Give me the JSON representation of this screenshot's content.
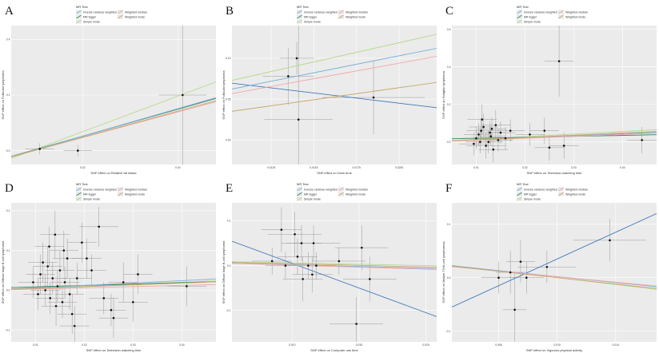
{
  "legend": {
    "title": "MR Test",
    "items": [
      {
        "label": "Inverse variance weighted",
        "color": "#79b0d9"
      },
      {
        "label": "MR Egger",
        "color": "#2e8b57"
      },
      {
        "label": "Simple mode",
        "color": "#b5d98c"
      },
      {
        "label": "Weighted median",
        "color": "#f2a6a8"
      },
      {
        "label": "Weighted mode",
        "color": "#c9a66b"
      }
    ]
  },
  "colors": {
    "panel_background": "#ebebeb",
    "grid": "#ffffff",
    "point": "#111111",
    "error_bar": "#8f8f8f",
    "egger_cross_panel": "#3f78b8"
  },
  "chart_data": [
    {
      "type": "scatter",
      "panel": "A",
      "xlabel": "SNP effect on Relative fat intake",
      "ylabel": "SNP effect on Follicular lymphoma",
      "x_ticks": [
        "0.02",
        "0.04"
      ],
      "y_ticks": [
        "0.4",
        "0.2",
        "0.0"
      ],
      "xlim": [
        0.005,
        0.048
      ],
      "ylim": [
        -0.05,
        0.45
      ],
      "points": [
        {
          "x": 0.011,
          "y": 0.006,
          "x_err": 0.003,
          "y_err": 0.02
        },
        {
          "x": 0.019,
          "y": 0.0,
          "x_err": 0.003,
          "y_err": 0.02
        },
        {
          "x": 0.041,
          "y": 0.2,
          "x_err": 0.005,
          "y_err": 0.25
        }
      ],
      "lines": [
        {
          "series": "Simple mode",
          "slope": 6.4,
          "intercept": -0.06
        },
        {
          "series": "MR Egger",
          "slope": 4.85,
          "intercept": -0.045
        },
        {
          "series": "Inverse variance weighted",
          "slope": 4.95,
          "intercept": -0.047
        },
        {
          "series": "Weighted median",
          "slope": 4.6,
          "intercept": -0.045
        },
        {
          "series": "Weighted mode",
          "slope": 4.7,
          "intercept": -0.046
        }
      ]
    },
    {
      "type": "scatter",
      "panel": "B",
      "xlabel": "SNP effect on Drive time",
      "ylabel": "SNP effect on Follicular lymphoma",
      "x_ticks": [
        "0.0125",
        "0.0150",
        "0.0175",
        "0.0200"
      ],
      "y_ticks": [
        "0.10",
        "0.05",
        "0.00"
      ],
      "xlim": [
        0.0102,
        0.0222
      ],
      "ylim": [
        -0.03,
        0.14
      ],
      "points": [
        {
          "x": 0.0135,
          "y": 0.078,
          "x_err": 0.0015,
          "y_err": 0.035
        },
        {
          "x": 0.014,
          "y": 0.1,
          "x_err": 0.001,
          "y_err": 0.02
        },
        {
          "x": 0.0141,
          "y": 0.025,
          "x_err": 0.002,
          "y_err": 0.13
        },
        {
          "x": 0.0185,
          "y": 0.052,
          "x_err": 0.003,
          "y_err": 0.045
        }
      ],
      "lines": [
        {
          "series": "Simple mode",
          "slope": 4.7,
          "intercept": 0.025
        },
        {
          "series": "MR Egger",
          "slope": -2.5,
          "intercept": 0.095
        },
        {
          "series": "Inverse variance weighted",
          "slope": 4.15,
          "intercept": 0.02
        },
        {
          "series": "Weighted median",
          "slope": 3.8,
          "intercept": 0.018
        },
        {
          "series": "Weighted mode",
          "slope": 2.95,
          "intercept": 0.005
        }
      ]
    },
    {
      "type": "scatter",
      "panel": "C",
      "xlabel": "SNP effect on Television watching time",
      "ylabel": "SNP effect on Hodgkin lymphoma",
      "x_ticks": [
        "0.01",
        "0.02",
        "0.03",
        "0.04"
      ],
      "y_ticks": [
        "0.6",
        "0.4",
        "0.2",
        "0.0"
      ],
      "xlim": [
        0.005,
        0.047
      ],
      "ylim": [
        -0.12,
        0.62
      ],
      "points": [
        {
          "x": 0.01,
          "y": 0.02,
          "x_err": 0.003,
          "y_err": 0.06
        },
        {
          "x": 0.011,
          "y": 0.06,
          "x_err": 0.003,
          "y_err": 0.06
        },
        {
          "x": 0.012,
          "y": -0.02,
          "x_err": 0.004,
          "y_err": 0.07
        },
        {
          "x": 0.013,
          "y": 0.03,
          "x_err": 0.003,
          "y_err": 0.05
        },
        {
          "x": 0.014,
          "y": 0.09,
          "x_err": 0.003,
          "y_err": 0.08
        },
        {
          "x": 0.0105,
          "y": 0.04,
          "x_err": 0.003,
          "y_err": 0.06
        },
        {
          "x": 0.0115,
          "y": 0.08,
          "x_err": 0.003,
          "y_err": 0.07
        },
        {
          "x": 0.0125,
          "y": 0.0,
          "x_err": 0.003,
          "y_err": 0.06
        },
        {
          "x": 0.0135,
          "y": -0.04,
          "x_err": 0.003,
          "y_err": 0.07
        },
        {
          "x": 0.015,
          "y": 0.05,
          "x_err": 0.003,
          "y_err": 0.06
        },
        {
          "x": 0.016,
          "y": 0.02,
          "x_err": 0.003,
          "y_err": 0.06
        },
        {
          "x": 0.017,
          "y": 0.06,
          "x_err": 0.003,
          "y_err": 0.06
        },
        {
          "x": 0.0095,
          "y": -0.01,
          "x_err": 0.003,
          "y_err": 0.06
        },
        {
          "x": 0.0112,
          "y": 0.12,
          "x_err": 0.003,
          "y_err": 0.08
        },
        {
          "x": 0.0128,
          "y": 0.05,
          "x_err": 0.003,
          "y_err": 0.06
        },
        {
          "x": 0.0145,
          "y": 0.01,
          "x_err": 0.003,
          "y_err": 0.06
        },
        {
          "x": 0.0108,
          "y": 0.0,
          "x_err": 0.003,
          "y_err": 0.06
        },
        {
          "x": 0.0132,
          "y": 0.07,
          "x_err": 0.003,
          "y_err": 0.06
        },
        {
          "x": 0.021,
          "y": 0.04,
          "x_err": 0.003,
          "y_err": 0.06
        },
        {
          "x": 0.024,
          "y": 0.06,
          "x_err": 0.003,
          "y_err": 0.07
        },
        {
          "x": 0.025,
          "y": -0.03,
          "x_err": 0.003,
          "y_err": 0.07
        },
        {
          "x": 0.027,
          "y": 0.43,
          "x_err": 0.003,
          "y_err": 0.19
        },
        {
          "x": 0.028,
          "y": -0.02,
          "x_err": 0.003,
          "y_err": 0.07
        },
        {
          "x": 0.044,
          "y": 0.01,
          "x_err": 0.003,
          "y_err": 0.07
        }
      ],
      "lines": [
        {
          "series": "Simple mode",
          "slope": 1.4,
          "intercept": 0.0
        },
        {
          "series": "MR Egger",
          "slope": 0.5,
          "intercept": 0.015
        },
        {
          "series": "Inverse variance weighted",
          "slope": 1.1,
          "intercept": 0.0
        },
        {
          "series": "Weighted median",
          "slope": 1.0,
          "intercept": 0.0
        },
        {
          "series": "Weighted mode",
          "slope": 1.2,
          "intercept": 0.0
        }
      ]
    },
    {
      "type": "scatter",
      "panel": "D",
      "xlabel": "SNP effect on Television watching time",
      "ylabel": "SNP effect on Diffuse large B-cell lymphoma",
      "x_ticks": [
        "0.01",
        "0.02",
        "0.03",
        "0.04"
      ],
      "y_ticks": [
        "0.2",
        "0.1",
        "0.0",
        "-0.1"
      ],
      "xlim": [
        0.005,
        0.047
      ],
      "ylim": [
        -0.13,
        0.22
      ],
      "points": [
        {
          "x": 0.0095,
          "y": 0.02,
          "x_err": 0.003,
          "y_err": 0.04
        },
        {
          "x": 0.0105,
          "y": -0.01,
          "x_err": 0.003,
          "y_err": 0.04
        },
        {
          "x": 0.011,
          "y": 0.04,
          "x_err": 0.003,
          "y_err": 0.05
        },
        {
          "x": 0.012,
          "y": 0.0,
          "x_err": 0.003,
          "y_err": 0.04
        },
        {
          "x": 0.0125,
          "y": 0.06,
          "x_err": 0.003,
          "y_err": 0.05
        },
        {
          "x": 0.013,
          "y": -0.02,
          "x_err": 0.003,
          "y_err": 0.04
        },
        {
          "x": 0.0135,
          "y": 0.03,
          "x_err": 0.003,
          "y_err": 0.04
        },
        {
          "x": 0.014,
          "y": 0.14,
          "x_err": 0.003,
          "y_err": 0.06
        },
        {
          "x": 0.0145,
          "y": 0.01,
          "x_err": 0.003,
          "y_err": 0.04
        },
        {
          "x": 0.015,
          "y": 0.05,
          "x_err": 0.003,
          "y_err": 0.05
        },
        {
          "x": 0.0155,
          "y": -0.03,
          "x_err": 0.003,
          "y_err": 0.04
        },
        {
          "x": 0.016,
          "y": 0.02,
          "x_err": 0.003,
          "y_err": 0.04
        },
        {
          "x": 0.0165,
          "y": 0.08,
          "x_err": 0.003,
          "y_err": 0.05
        },
        {
          "x": 0.017,
          "y": -0.01,
          "x_err": 0.003,
          "y_err": 0.04
        },
        {
          "x": 0.0115,
          "y": 0.07,
          "x_err": 0.003,
          "y_err": 0.05
        },
        {
          "x": 0.0128,
          "y": 0.11,
          "x_err": 0.003,
          "y_err": 0.05
        },
        {
          "x": 0.0142,
          "y": -0.04,
          "x_err": 0.003,
          "y_err": 0.05
        },
        {
          "x": 0.0158,
          "y": 0.1,
          "x_err": 0.003,
          "y_err": 0.05
        },
        {
          "x": 0.0175,
          "y": -0.06,
          "x_err": 0.003,
          "y_err": 0.05
        },
        {
          "x": 0.018,
          "y": -0.09,
          "x_err": 0.003,
          "y_err": 0.05
        },
        {
          "x": 0.0185,
          "y": 0.03,
          "x_err": 0.003,
          "y_err": 0.04
        },
        {
          "x": 0.0195,
          "y": 0.12,
          "x_err": 0.003,
          "y_err": 0.05
        },
        {
          "x": 0.0205,
          "y": 0.08,
          "x_err": 0.003,
          "y_err": 0.05
        },
        {
          "x": 0.0215,
          "y": 0.05,
          "x_err": 0.003,
          "y_err": 0.04
        },
        {
          "x": 0.023,
          "y": 0.16,
          "x_err": 0.004,
          "y_err": 0.05
        },
        {
          "x": 0.024,
          "y": -0.02,
          "x_err": 0.003,
          "y_err": 0.04
        },
        {
          "x": 0.0255,
          "y": -0.05,
          "x_err": 0.003,
          "y_err": 0.04
        },
        {
          "x": 0.026,
          "y": -0.07,
          "x_err": 0.003,
          "y_err": 0.05
        },
        {
          "x": 0.028,
          "y": 0.02,
          "x_err": 0.003,
          "y_err": 0.05
        },
        {
          "x": 0.03,
          "y": -0.03,
          "x_err": 0.003,
          "y_err": 0.05
        },
        {
          "x": 0.031,
          "y": 0.04,
          "x_err": 0.003,
          "y_err": 0.05
        },
        {
          "x": 0.041,
          "y": 0.01,
          "x_err": 0.004,
          "y_err": 0.05
        }
      ],
      "lines": [
        {
          "series": "Simple mode",
          "slope": 0.5,
          "intercept": 0.0
        },
        {
          "series": "MR Egger",
          "slope": 0.35,
          "intercept": 0.005
        },
        {
          "series": "Inverse variance weighted",
          "slope": 0.6,
          "intercept": 0.0
        },
        {
          "series": "Weighted median",
          "slope": 0.3,
          "intercept": 0.0
        },
        {
          "series": "Weighted mode",
          "slope": 0.45,
          "intercept": 0.0
        }
      ]
    },
    {
      "type": "scatter",
      "panel": "E",
      "xlabel": "SNP effect on Computer use time",
      "ylabel": "SNP effect on Diffuse large B-cell lymphoma",
      "x_ticks": [
        "0.010",
        "0.015",
        "0.020"
      ],
      "y_ticks": [
        "0.1",
        "0.0",
        "-0.1"
      ],
      "xlim": [
        0.0055,
        0.0208
      ],
      "ylim": [
        -0.17,
        0.14
      ],
      "points": [
        {
          "x": 0.0085,
          "y": 0.01,
          "x_err": 0.0015,
          "y_err": 0.03
        },
        {
          "x": 0.0095,
          "y": 0.0,
          "x_err": 0.0015,
          "y_err": 0.03
        },
        {
          "x": 0.0092,
          "y": 0.08,
          "x_err": 0.0015,
          "y_err": 0.05
        },
        {
          "x": 0.0102,
          "y": 0.07,
          "x_err": 0.002,
          "y_err": 0.05
        },
        {
          "x": 0.0104,
          "y": 0.02,
          "x_err": 0.0015,
          "y_err": 0.04
        },
        {
          "x": 0.0107,
          "y": 0.05,
          "x_err": 0.0015,
          "y_err": 0.04
        },
        {
          "x": 0.0108,
          "y": -0.03,
          "x_err": 0.0015,
          "y_err": 0.05
        },
        {
          "x": 0.0112,
          "y": 0.0,
          "x_err": 0.0015,
          "y_err": 0.03
        },
        {
          "x": 0.0116,
          "y": 0.05,
          "x_err": 0.002,
          "y_err": 0.04
        },
        {
          "x": 0.0118,
          "y": 0.0,
          "x_err": 0.0015,
          "y_err": 0.03
        },
        {
          "x": 0.0115,
          "y": -0.02,
          "x_err": 0.0015,
          "y_err": 0.04
        },
        {
          "x": 0.0135,
          "y": 0.01,
          "x_err": 0.002,
          "y_err": 0.03
        },
        {
          "x": 0.0152,
          "y": 0.04,
          "x_err": 0.002,
          "y_err": 0.05
        },
        {
          "x": 0.0158,
          "y": -0.03,
          "x_err": 0.002,
          "y_err": 0.05
        },
        {
          "x": 0.0148,
          "y": -0.13,
          "x_err": 0.002,
          "y_err": 0.06
        }
      ],
      "lines": [
        {
          "series": "Simple mode",
          "slope": -0.6,
          "intercept": 0.012
        },
        {
          "series": "MR Egger",
          "slope": -11.0,
          "intercept": 0.115
        },
        {
          "series": "Inverse variance weighted",
          "slope": -0.8,
          "intercept": 0.01
        },
        {
          "series": "Weighted median",
          "slope": -0.9,
          "intercept": 0.01
        },
        {
          "series": "Weighted mode",
          "slope": -0.7,
          "intercept": 0.011
        }
      ]
    },
    {
      "type": "scatter",
      "panel": "F",
      "xlabel": "SNP effect on Vigorous physical activity",
      "ylabel": "SNP effect on Mature T/NK-cell lymphomas",
      "x_ticks": [
        "0.006",
        "0.010",
        "0.014"
      ],
      "y_ticks": [
        "0.1",
        "0.0",
        "-0.1"
      ],
      "xlim": [
        0.0028,
        0.0168
      ],
      "ylim": [
        -0.12,
        0.14
      ],
      "points": [
        {
          "x": 0.006,
          "y": 0.0,
          "x_err": 0.0012,
          "y_err": 0.03
        },
        {
          "x": 0.0068,
          "y": 0.01,
          "x_err": 0.001,
          "y_err": 0.04
        },
        {
          "x": 0.0071,
          "y": -0.06,
          "x_err": 0.0008,
          "y_err": 0.07
        },
        {
          "x": 0.0075,
          "y": 0.03,
          "x_err": 0.001,
          "y_err": 0.04
        },
        {
          "x": 0.0079,
          "y": 0.0,
          "x_err": 0.0012,
          "y_err": 0.03
        },
        {
          "x": 0.0093,
          "y": 0.02,
          "x_err": 0.002,
          "y_err": 0.03
        },
        {
          "x": 0.0136,
          "y": 0.07,
          "x_err": 0.0025,
          "y_err": 0.04
        }
      ],
      "lines": [
        {
          "series": "Simple mode",
          "slope": -3.2,
          "intercept": 0.032
        },
        {
          "series": "MR Egger",
          "slope": 12.5,
          "intercept": -0.09
        },
        {
          "series": "Inverse variance weighted",
          "slope": -2.8,
          "intercept": 0.03
        },
        {
          "series": "Weighted median",
          "slope": -2.6,
          "intercept": 0.028
        },
        {
          "series": "Weighted mode",
          "slope": -3.0,
          "intercept": 0.03
        }
      ]
    }
  ]
}
